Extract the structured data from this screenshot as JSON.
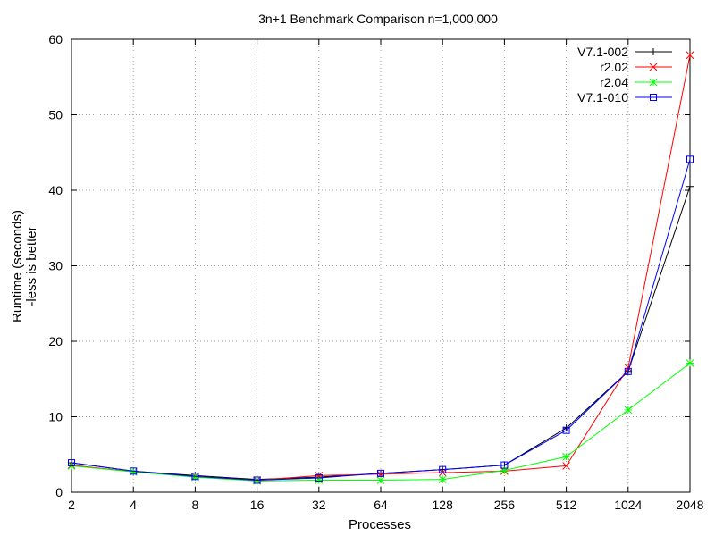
{
  "chart_data": {
    "type": "line",
    "title": "3n+1 Benchmark Comparison n=1,000,000",
    "xlabel": "Processes",
    "ylabel_line1": "Runtime (seconds)",
    "ylabel_line2": "-less is better",
    "categories": [
      "2",
      "4",
      "8",
      "16",
      "32",
      "64",
      "128",
      "256",
      "512",
      "1024",
      "2048"
    ],
    "ylim": [
      0,
      60
    ],
    "yticks": [
      0,
      10,
      20,
      30,
      40,
      50,
      60
    ],
    "grid": true,
    "legend_position": "top-right",
    "series": [
      {
        "name": "V7.1-002",
        "color": "#000000",
        "marker": "plus",
        "values": [
          3.9,
          2.8,
          2.2,
          1.7,
          2.0,
          2.5,
          3.0,
          3.6,
          8.5,
          16.0,
          40.5
        ]
      },
      {
        "name": "r2.02",
        "color": "#ff0000",
        "marker": "cross",
        "values": [
          3.6,
          2.7,
          2.1,
          1.6,
          2.2,
          2.4,
          2.6,
          2.8,
          3.5,
          16.5,
          57.9
        ]
      },
      {
        "name": "r2.04",
        "color": "#00ff00",
        "marker": "star",
        "values": [
          3.5,
          2.7,
          2.0,
          1.5,
          1.6,
          1.6,
          1.7,
          2.9,
          4.7,
          10.9,
          17.1
        ]
      },
      {
        "name": "V7.1-010",
        "color": "#0000ff",
        "marker": "square",
        "values": [
          3.9,
          2.8,
          2.1,
          1.6,
          1.9,
          2.5,
          3.0,
          3.6,
          8.2,
          16.0,
          44.1
        ]
      }
    ]
  }
}
